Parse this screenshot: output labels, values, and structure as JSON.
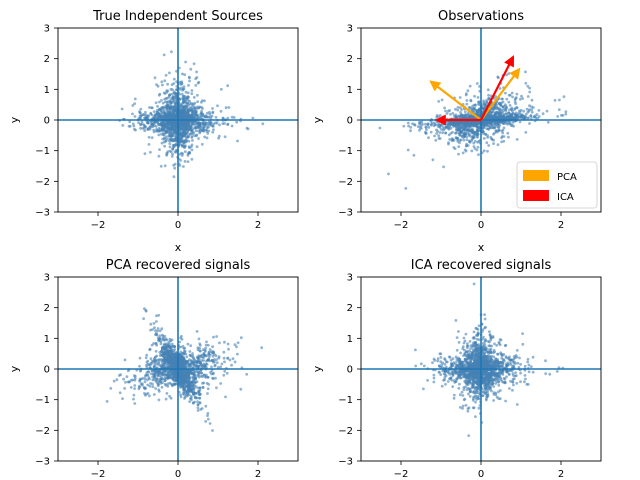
{
  "figure": {
    "colors": {
      "points": "#4682b4",
      "zero_lines": "#1f77b4",
      "pca": "#ffa500",
      "ica": "#ff0000"
    }
  },
  "chart_data": [
    {
      "type": "scatter",
      "title": "True Independent Sources",
      "xlabel": "x",
      "ylabel": "y",
      "xlim": [
        -3,
        3
      ],
      "ylim": [
        -3,
        3
      ],
      "xticks": [
        -2,
        0,
        2
      ],
      "yticks": [
        -3,
        -2,
        -1,
        0,
        1,
        2,
        3
      ],
      "pattern": "axis-cross",
      "point_count": 1600,
      "zero_lines": true
    },
    {
      "type": "scatter",
      "title": "Observations",
      "xlabel": "x",
      "ylabel": "y",
      "xlim": [
        -3,
        3
      ],
      "ylim": [
        -3,
        3
      ],
      "xticks": [
        -2,
        0,
        2
      ],
      "yticks": [
        -3,
        -2,
        -1,
        0,
        1,
        2,
        3
      ],
      "pattern": "mixed-observations",
      "point_count": 1600,
      "zero_lines": true,
      "arrows": [
        {
          "series": "PCA",
          "x": 0.95,
          "y": 1.65
        },
        {
          "series": "PCA",
          "x": -1.25,
          "y": 1.25
        },
        {
          "series": "ICA",
          "x": 0.8,
          "y": 2.05
        },
        {
          "series": "ICA",
          "x": -1.1,
          "y": 0.0
        }
      ],
      "legend": {
        "placement": "lower-right",
        "entries": [
          "PCA",
          "ICA"
        ]
      }
    },
    {
      "type": "scatter",
      "title": "PCA recovered signals",
      "xlabel": "",
      "ylabel": "y",
      "xlim": [
        -3,
        3
      ],
      "ylim": [
        -3,
        3
      ],
      "xticks": [
        -2,
        0,
        2
      ],
      "yticks": [
        -3,
        -2,
        -1,
        0,
        1,
        2,
        3
      ],
      "pattern": "rotated-cross",
      "point_count": 1600,
      "zero_lines": true
    },
    {
      "type": "scatter",
      "title": "ICA recovered signals",
      "xlabel": "",
      "ylabel": "y",
      "xlim": [
        -3,
        3
      ],
      "ylim": [
        -3,
        3
      ],
      "xticks": [
        -2,
        0,
        2
      ],
      "yticks": [
        -3,
        -2,
        -1,
        0,
        1,
        2,
        3
      ],
      "pattern": "axis-cross",
      "point_count": 1600,
      "zero_lines": true
    }
  ]
}
